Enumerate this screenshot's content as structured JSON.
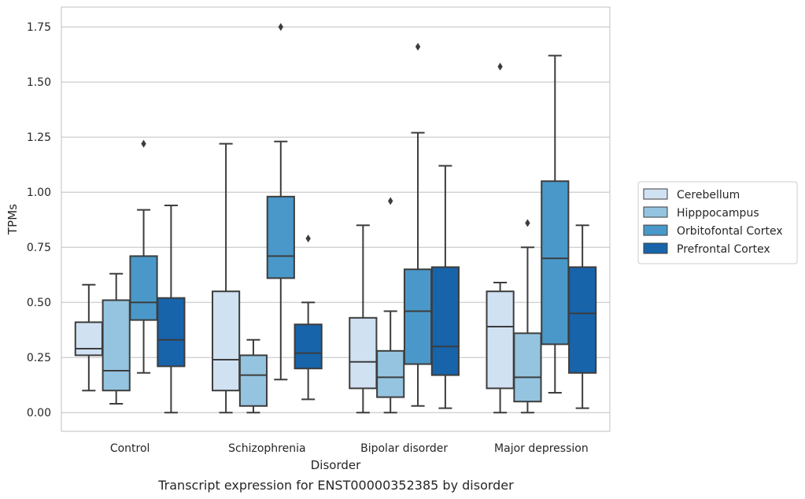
{
  "chart_data": {
    "type": "boxplot",
    "title": "",
    "caption": "Transcript expression for ENST00000352385 by disorder",
    "xlabel": "Disorder",
    "ylabel": "TPMs",
    "ylim": [
      -0.085,
      1.84
    ],
    "yticks": [
      "0.00",
      "0.25",
      "0.50",
      "0.75",
      "1.00",
      "1.25",
      "1.50",
      "1.75"
    ],
    "grid": "horizontal",
    "legend_position": "right",
    "categories": [
      "Control",
      "Schizophrenia",
      "Bipolar disorder",
      "Major depression"
    ],
    "series": [
      {
        "name": "Cerebellum",
        "color": "#d0e1f2",
        "boxes": [
          {
            "whislo": 0.1,
            "q1": 0.26,
            "med": 0.29,
            "q3": 0.41,
            "whishi": 0.58,
            "fliers": []
          },
          {
            "whislo": 0.0,
            "q1": 0.1,
            "med": 0.24,
            "q3": 0.55,
            "whishi": 1.22,
            "fliers": []
          },
          {
            "whislo": 0.0,
            "q1": 0.11,
            "med": 0.23,
            "q3": 0.43,
            "whishi": 0.85,
            "fliers": []
          },
          {
            "whislo": 0.0,
            "q1": 0.11,
            "med": 0.39,
            "q3": 0.55,
            "whishi": 0.59,
            "fliers": [
              1.57
            ]
          }
        ]
      },
      {
        "name": "Hipppocampus",
        "color": "#94c4df",
        "boxes": [
          {
            "whislo": 0.04,
            "q1": 0.1,
            "med": 0.19,
            "q3": 0.51,
            "whishi": 0.63,
            "fliers": []
          },
          {
            "whislo": 0.0,
            "q1": 0.03,
            "med": 0.17,
            "q3": 0.26,
            "whishi": 0.33,
            "fliers": []
          },
          {
            "whislo": 0.0,
            "q1": 0.07,
            "med": 0.16,
            "q3": 0.28,
            "whishi": 0.46,
            "fliers": [
              0.96
            ]
          },
          {
            "whislo": 0.0,
            "q1": 0.05,
            "med": 0.16,
            "q3": 0.36,
            "whishi": 0.75,
            "fliers": [
              0.86
            ]
          }
        ]
      },
      {
        "name": "Orbitofontal Cortex",
        "color": "#4a98c9",
        "boxes": [
          {
            "whislo": 0.18,
            "q1": 0.42,
            "med": 0.5,
            "q3": 0.71,
            "whishi": 0.92,
            "fliers": [
              1.22
            ]
          },
          {
            "whislo": 0.15,
            "q1": 0.61,
            "med": 0.71,
            "q3": 0.98,
            "whishi": 1.23,
            "fliers": [
              1.75
            ]
          },
          {
            "whislo": 0.03,
            "q1": 0.22,
            "med": 0.46,
            "q3": 0.65,
            "whishi": 1.27,
            "fliers": [
              1.66
            ]
          },
          {
            "whislo": 0.09,
            "q1": 0.31,
            "med": 0.7,
            "q3": 1.05,
            "whishi": 1.62,
            "fliers": []
          }
        ]
      },
      {
        "name": "Prefrontal Cortex",
        "color": "#1764ab",
        "boxes": [
          {
            "whislo": 0.0,
            "q1": 0.21,
            "med": 0.33,
            "q3": 0.52,
            "whishi": 0.94,
            "fliers": []
          },
          {
            "whislo": 0.06,
            "q1": 0.2,
            "med": 0.27,
            "q3": 0.4,
            "whishi": 0.5,
            "fliers": [
              0.79
            ]
          },
          {
            "whislo": 0.02,
            "q1": 0.17,
            "med": 0.3,
            "q3": 0.66,
            "whishi": 1.12,
            "fliers": []
          },
          {
            "whislo": 0.02,
            "q1": 0.18,
            "med": 0.45,
            "q3": 0.66,
            "whishi": 0.85,
            "fliers": []
          }
        ]
      }
    ]
  }
}
